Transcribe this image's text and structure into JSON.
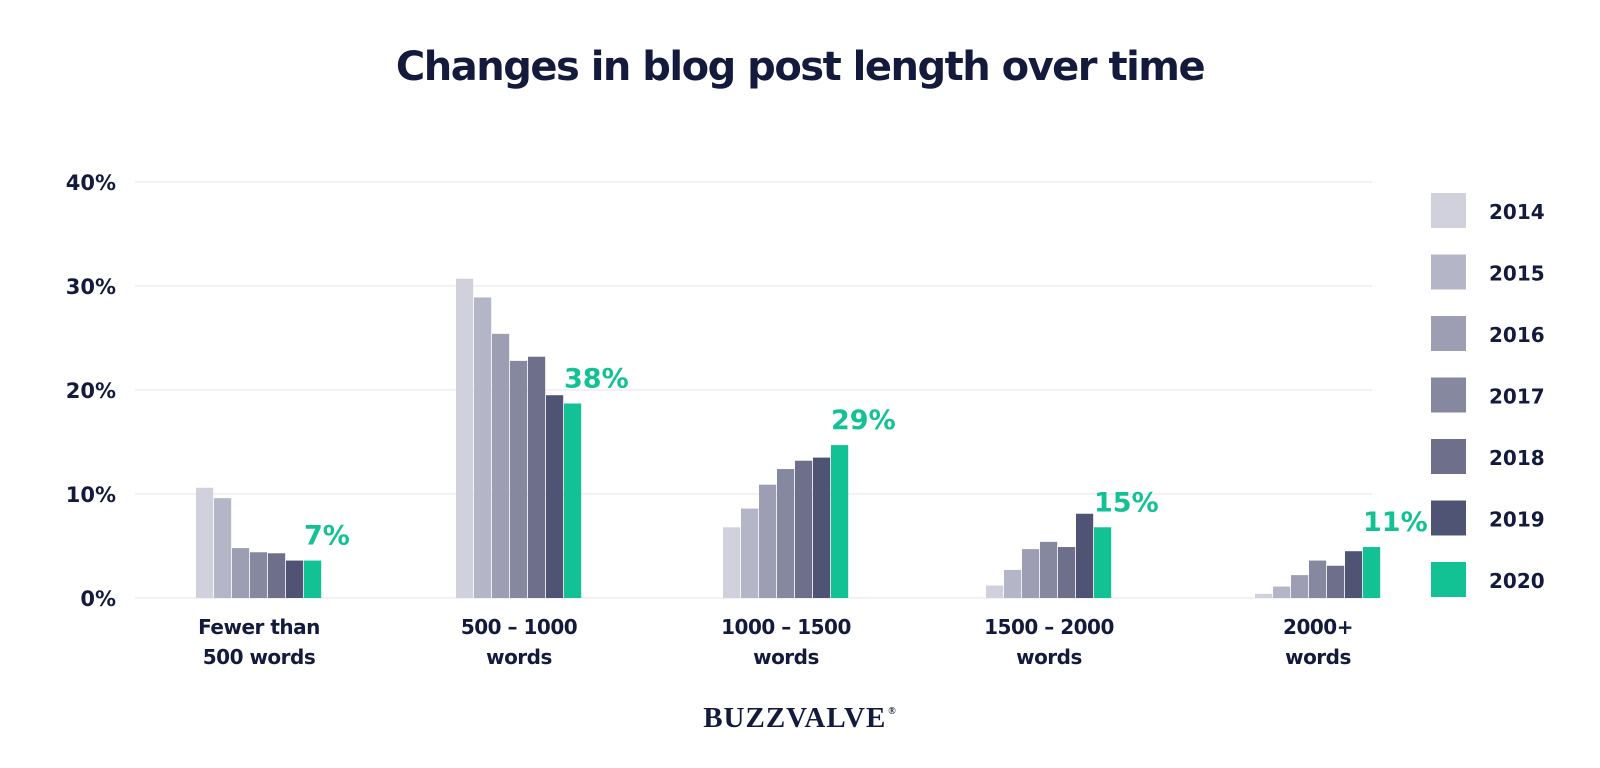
{
  "chart_data": {
    "type": "bar",
    "title": "Changes in blog post length over time",
    "categories": [
      [
        "Fewer than",
        "500 words"
      ],
      [
        "500 – 1000",
        "words"
      ],
      [
        "1000 – 1500",
        "words"
      ],
      [
        "1500 – 2000",
        "words"
      ],
      [
        "2000+",
        "words"
      ]
    ],
    "yticks": [
      "0%",
      "10%",
      "20%",
      "30%",
      "40%"
    ],
    "ylim": [
      0,
      40
    ],
    "grid": true,
    "legend_position": "right",
    "series": [
      {
        "name": "2014",
        "color": "#d0d1dc",
        "values": [
          10.6,
          30.7,
          6.8,
          1.2,
          0.4
        ]
      },
      {
        "name": "2015",
        "color": "#b4b5c7",
        "values": [
          9.6,
          28.9,
          8.6,
          2.7,
          1.1
        ]
      },
      {
        "name": "2016",
        "color": "#9d9eb3",
        "values": [
          4.8,
          25.4,
          10.9,
          4.7,
          2.2
        ]
      },
      {
        "name": "2017",
        "color": "#86889f",
        "values": [
          4.4,
          22.8,
          12.4,
          5.4,
          3.6
        ]
      },
      {
        "name": "2018",
        "color": "#6d6f8b",
        "values": [
          4.3,
          23.2,
          13.2,
          4.9,
          3.1
        ]
      },
      {
        "name": "2019",
        "color": "#4f5475",
        "values": [
          3.6,
          19.5,
          13.5,
          8.1,
          4.5
        ]
      },
      {
        "name": "2020",
        "color": "#12c194",
        "values": [
          3.6,
          18.7,
          14.7,
          6.8,
          4.9
        ]
      }
    ],
    "highlight_labels": [
      "7%",
      "38%",
      "29%",
      "15%",
      "11%"
    ],
    "highlight_color": "#12c194"
  },
  "brand": {
    "name": "BUZZVALVE",
    "mark": "®"
  }
}
